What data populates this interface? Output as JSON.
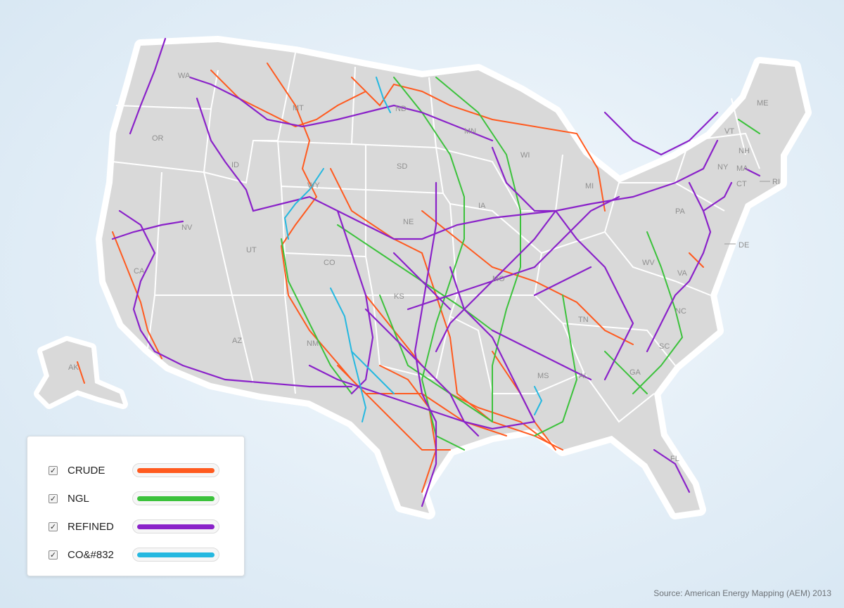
{
  "colors": {
    "crude": "#ff5a1f",
    "ngl": "#3cc23c",
    "refined": "#8a22c9",
    "co2": "#25b8e0",
    "land": "#d9d9d9",
    "border": "#ffffff"
  },
  "state_labels": [
    "WA",
    "OR",
    "ID",
    "MT",
    "ND",
    "MN",
    "WY",
    "SD",
    "NV",
    "UT",
    "CO",
    "NE",
    "CA",
    "AZ",
    "NM",
    "AK",
    "MS",
    "AL",
    "GA",
    "SC",
    "NC",
    "TN",
    "WV",
    "PA",
    "NY",
    "VT",
    "NH",
    "ME",
    "MA",
    "CT",
    "RI",
    "DE",
    "FL",
    "KS",
    "MO",
    "IA",
    "WI",
    "MI",
    "VA"
  ],
  "legend": {
    "items": [
      {
        "label": "CRUDE",
        "color": "#ff5a1f",
        "checked": "✓"
      },
      {
        "label": "NGL",
        "color": "#3cc23c",
        "checked": "✓"
      },
      {
        "label": "REFINED",
        "color": "#8a22c9",
        "checked": "✓"
      },
      {
        "label": "CO&#832",
        "color": "#25b8e0",
        "checked": "✓"
      }
    ]
  },
  "source": "Source: American Energy Mapping (AEM) 2013"
}
